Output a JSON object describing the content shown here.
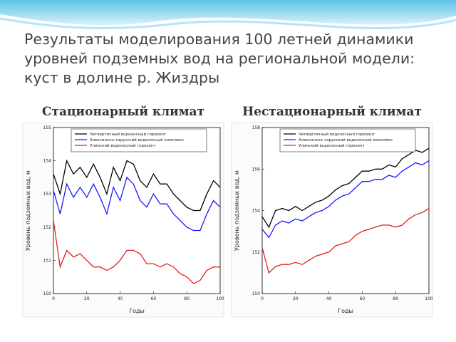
{
  "title": "Результаты моделирования 100 летней динамики уровней подземных вод на региональной модели: куст в долине р. Жиздры",
  "chart_data": [
    {
      "type": "line",
      "title": "Стационарный климат",
      "xlabel": "Годы",
      "ylabel": "Уровень подземных вод, м",
      "x": [
        0,
        4,
        8,
        12,
        16,
        20,
        24,
        28,
        32,
        36,
        40,
        44,
        48,
        52,
        56,
        60,
        64,
        68,
        72,
        76,
        80,
        84,
        88,
        92,
        96,
        100
      ],
      "xlim": [
        0,
        100
      ],
      "xticks": [
        0,
        20,
        40,
        60,
        80,
        100
      ],
      "ylim": [
        150,
        155
      ],
      "yticks": [
        150,
        151,
        152,
        153,
        154,
        155
      ],
      "legend": "top",
      "series": [
        {
          "name": "Четвертичный водоносный горизонт",
          "color": "#000000",
          "values": [
            153.6,
            153.0,
            154.0,
            153.6,
            153.8,
            153.5,
            153.9,
            153.5,
            153.0,
            153.8,
            153.4,
            154.0,
            153.9,
            153.4,
            153.2,
            153.6,
            153.3,
            153.3,
            153.0,
            152.8,
            152.6,
            152.5,
            152.5,
            153.0,
            153.4,
            153.2
          ]
        },
        {
          "name": "Алексинско-тарусский водоносный комплекс",
          "color": "#1a1aff",
          "values": [
            153.1,
            152.4,
            153.3,
            152.9,
            153.2,
            152.9,
            153.3,
            152.9,
            152.4,
            153.2,
            152.8,
            153.5,
            153.3,
            152.8,
            152.6,
            153.0,
            152.7,
            152.7,
            152.4,
            152.2,
            152.0,
            151.9,
            151.9,
            152.4,
            152.8,
            152.6
          ]
        },
        {
          "name": "Упинский водоносный горизонт",
          "color": "#e02020",
          "values": [
            152.2,
            150.8,
            151.3,
            151.1,
            151.2,
            151.0,
            150.8,
            150.8,
            150.7,
            150.8,
            151.0,
            151.3,
            151.3,
            151.2,
            150.9,
            150.9,
            150.8,
            150.9,
            150.8,
            150.6,
            150.5,
            150.3,
            150.4,
            150.7,
            150.8,
            150.8
          ]
        }
      ]
    },
    {
      "type": "line",
      "title": "Нестационарный климат",
      "xlabel": "Годы",
      "ylabel": "Уровень подземных вод, м",
      "x": [
        0,
        4,
        8,
        12,
        16,
        20,
        24,
        28,
        32,
        36,
        40,
        44,
        48,
        52,
        56,
        60,
        64,
        68,
        72,
        76,
        80,
        84,
        88,
        92,
        96,
        100
      ],
      "xlim": [
        0,
        100
      ],
      "xticks": [
        0,
        20,
        40,
        60,
        80,
        100
      ],
      "ylim": [
        150,
        158
      ],
      "yticks": [
        150,
        152,
        154,
        156,
        158
      ],
      "legend": "top",
      "series": [
        {
          "name": "Четвертичный водоносный горизонт",
          "color": "#000000",
          "values": [
            153.7,
            153.2,
            154.0,
            154.1,
            154.0,
            154.2,
            154.0,
            154.2,
            154.4,
            154.5,
            154.7,
            155.0,
            155.2,
            155.3,
            155.6,
            155.9,
            155.9,
            156.0,
            156.0,
            156.2,
            156.1,
            156.5,
            156.7,
            156.9,
            156.8,
            157.0
          ]
        },
        {
          "name": "Алексинско-тарусский водоносный комплекс",
          "color": "#1a1aff",
          "values": [
            153.1,
            152.7,
            153.3,
            153.5,
            153.4,
            153.6,
            153.5,
            153.7,
            153.9,
            154.0,
            154.2,
            154.5,
            154.7,
            154.8,
            155.1,
            155.4,
            155.4,
            155.5,
            155.5,
            155.7,
            155.6,
            155.9,
            156.1,
            156.3,
            156.2,
            156.4
          ]
        },
        {
          "name": "Упинский водоносный горизонт",
          "color": "#e02020",
          "values": [
            152.2,
            151.0,
            151.3,
            151.4,
            151.4,
            151.5,
            151.4,
            151.6,
            151.8,
            151.9,
            152.0,
            152.3,
            152.4,
            152.5,
            152.8,
            153.0,
            153.1,
            153.2,
            153.3,
            153.3,
            153.2,
            153.3,
            153.6,
            153.8,
            153.9,
            154.1
          ]
        }
      ]
    }
  ]
}
